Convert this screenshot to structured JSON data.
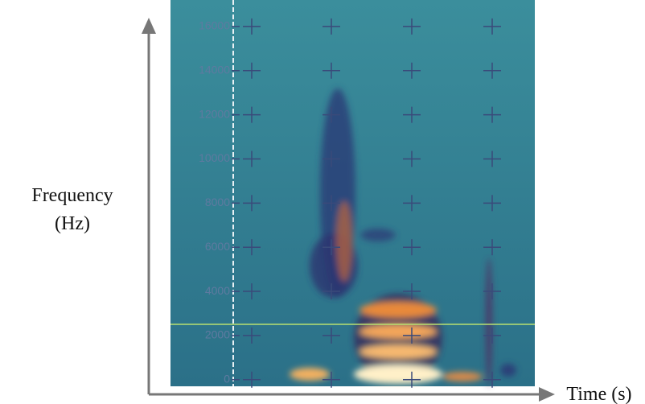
{
  "chart_data": {
    "type": "spectrogram",
    "ylabel": [
      "Frequency",
      "(Hz)"
    ],
    "xlabel": "Time (s)",
    "ylim": [
      -300,
      17200
    ],
    "yticks": [
      0,
      2000,
      4000,
      6000,
      8000,
      10000,
      12000,
      14000,
      16000
    ],
    "grid": true
  }
}
